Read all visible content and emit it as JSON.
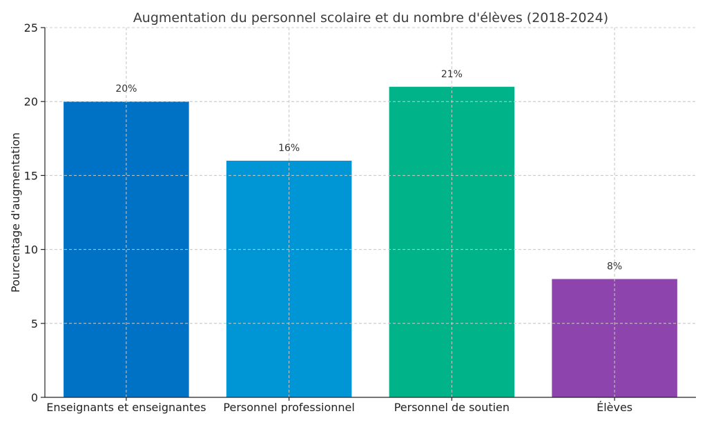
{
  "chart_data": {
    "type": "bar",
    "title": "Augmentation du personnel scolaire et du nombre d'élèves (2018-2024)",
    "xlabel": "",
    "ylabel": "Pourcentage d'augmentation",
    "ylim": [
      0,
      25
    ],
    "yticks": [
      0,
      5,
      10,
      15,
      20,
      25
    ],
    "grid": true,
    "categories": [
      "Enseignants et enseignantes",
      "Personnel professionnel",
      "Personnel de soutien",
      "Élèves"
    ],
    "values": [
      20,
      16,
      21,
      8
    ],
    "data_labels": [
      "20%",
      "16%",
      "21%",
      "8%"
    ],
    "colors": [
      "#0072c6",
      "#0096d6",
      "#00b388",
      "#8e44ad"
    ]
  }
}
